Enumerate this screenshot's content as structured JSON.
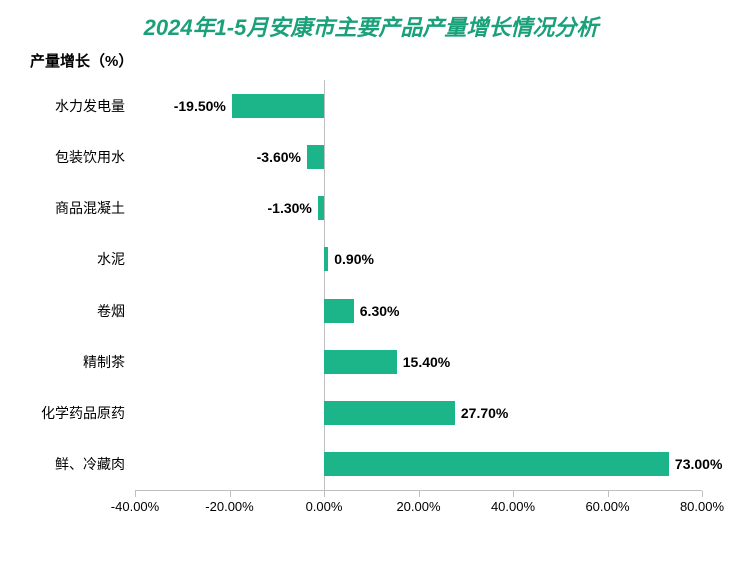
{
  "chart": {
    "type": "bar-horizontal",
    "title": "2024年1-5月安康市主要产品产量增长情况分析",
    "title_color": "#1aa179",
    "title_fontsize": 22,
    "ylabel": "产量增长（%）",
    "ylabel_fontsize": 15,
    "background_color": "#ffffff",
    "bar_color": "#1cb58a",
    "axis_color": "#bfbfbf",
    "label_fontsize": 14,
    "value_label_fontsize": 14,
    "bar_height_ratio": 0.48,
    "xlim": [
      -40,
      80
    ],
    "xtick_step": 20,
    "xticks": [
      -40,
      -20,
      0,
      20,
      40,
      60,
      80
    ],
    "xtick_labels": [
      "-40.00%",
      "-20.00%",
      "0.00%",
      "20.00%",
      "40.00%",
      "60.00%",
      "80.00%"
    ],
    "categories": [
      "水力发电量",
      "包装饮用水",
      "商品混凝土",
      "水泥",
      "卷烟",
      "精制茶",
      "化学药品原药",
      "鲜、冷藏肉"
    ],
    "values": [
      -19.5,
      -3.6,
      -1.3,
      0.9,
      6.3,
      15.4,
      27.7,
      73.0
    ],
    "value_labels": [
      "-19.50%",
      "-3.60%",
      "-1.30%",
      "0.90%",
      "6.30%",
      "15.40%",
      "27.70%",
      "73.00%"
    ]
  }
}
